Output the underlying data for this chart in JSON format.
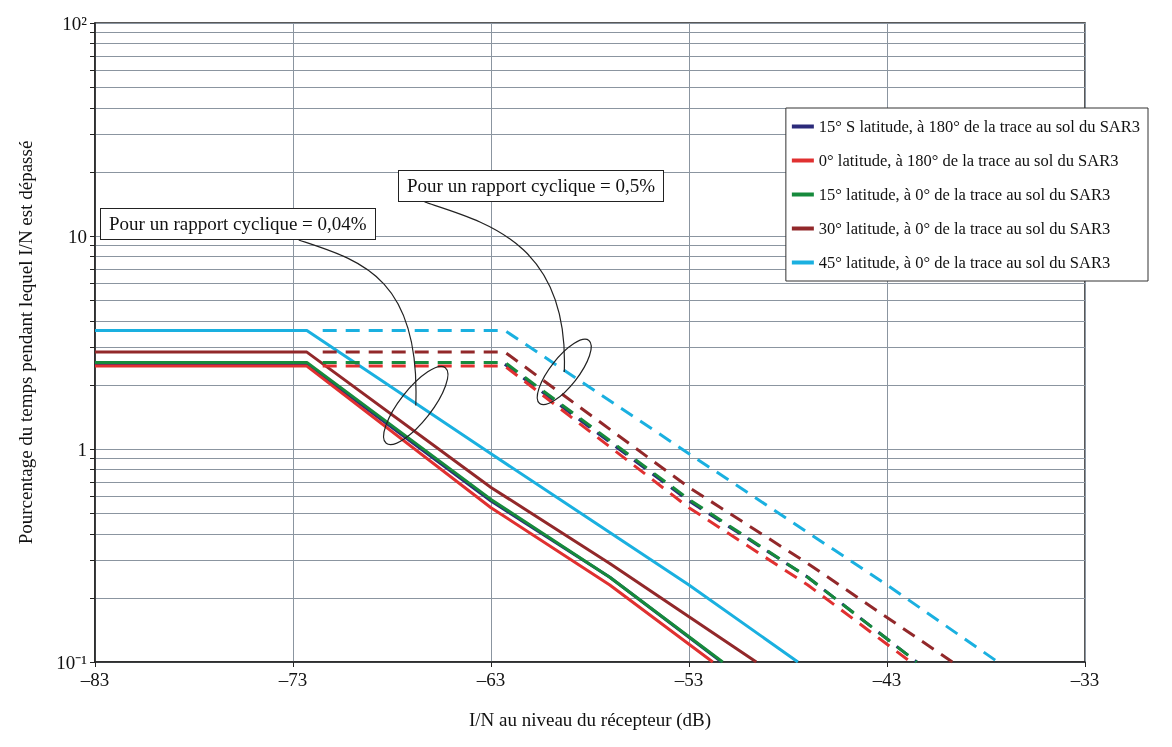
{
  "chart_data": {
    "type": "line",
    "xlabel": "I/N au niveau du récepteur (dB)",
    "ylabel": "Pourcentage du temps pendant lequel I/N est dépassé",
    "xlim": [
      -83,
      -33
    ],
    "xticks": [
      {
        "value": -83,
        "label": "–83"
      },
      {
        "value": -73,
        "label": "–73"
      },
      {
        "value": -63,
        "label": "–63"
      },
      {
        "value": -53,
        "label": "–53"
      },
      {
        "value": -43,
        "label": "–43"
      },
      {
        "value": -33,
        "label": "–33"
      }
    ],
    "ylim": [
      0.1,
      100
    ],
    "yticks": [
      {
        "value": 0.1,
        "label": "10⁻¹"
      },
      {
        "value": 0.2,
        "label": null
      },
      {
        "value": 0.3,
        "label": null
      },
      {
        "value": 0.4,
        "label": null
      },
      {
        "value": 0.5,
        "label": null
      },
      {
        "value": 0.6,
        "label": null
      },
      {
        "value": 0.7,
        "label": null
      },
      {
        "value": 0.8,
        "label": null
      },
      {
        "value": 0.9,
        "label": null
      },
      1,
      {
        "value": 2,
        "label": null
      },
      {
        "value": 3,
        "label": null
      },
      {
        "value": 4,
        "label": null
      },
      {
        "value": 5,
        "label": null
      },
      {
        "value": 6,
        "label": null
      },
      {
        "value": 7,
        "label": null
      },
      {
        "value": 8,
        "label": null
      },
      {
        "value": 9,
        "label": null
      },
      10,
      {
        "value": 20,
        "label": null
      },
      {
        "value": 30,
        "label": null
      },
      {
        "value": 40,
        "label": null
      },
      {
        "value": 50,
        "label": null
      },
      {
        "value": 60,
        "label": null
      },
      {
        "value": 70,
        "label": null
      },
      {
        "value": 80,
        "label": null
      },
      {
        "value": 90,
        "label": null
      },
      {
        "value": 100,
        "label": "10²"
      }
    ],
    "log": "y",
    "grid": true,
    "legend": "top right",
    "marker": "none",
    "series": [
      {
        "name": "15° S latitude, à 180° de la trace au sol du SAR3",
        "color": "#2b2a7a",
        "line_style": "solid",
        "x": [
          -83,
          -72.3,
          -63,
          -57,
          -51.35
        ],
        "values": [
          2.5,
          2.5,
          0.57,
          0.25,
          0.1
        ]
      },
      {
        "name": "0° latitude, à 180° de la trace au sol du SAR3",
        "color": "#e03030",
        "line_style": "solid",
        "x": [
          -83,
          -72.3,
          -63,
          -57,
          -51.8
        ],
        "values": [
          2.45,
          2.45,
          0.53,
          0.23,
          0.1
        ]
      },
      {
        "name": "15° latitude, à 0° de la trace au sol du SAR3",
        "color": "#168a3c",
        "line_style": "solid",
        "x": [
          -83,
          -72.3,
          -63,
          -57,
          -51.3
        ],
        "values": [
          2.55,
          2.55,
          0.58,
          0.25,
          0.1
        ]
      },
      {
        "name": "30° latitude, à 0° de la trace au sol du SAR3",
        "color": "#92282a",
        "line_style": "solid",
        "x": [
          -83,
          -72.3,
          -63,
          -57,
          -49.6
        ],
        "values": [
          2.85,
          2.85,
          0.66,
          0.29,
          0.1
        ]
      },
      {
        "name": "45° latitude, à 0° de la trace au sol du SAR3",
        "color": "#1ab0e0",
        "line_style": "solid",
        "x": [
          -83,
          -72.3,
          -63,
          -53,
          -47.5
        ],
        "values": [
          3.6,
          3.6,
          0.95,
          0.23,
          0.1
        ]
      },
      {
        "color": "#2b2a7a",
        "line_style": "dashed",
        "x": [
          -62.3,
          -53,
          -47,
          -41.5
        ],
        "values": [
          2.5,
          0.57,
          0.25,
          0.1
        ]
      },
      {
        "color": "#e03030",
        "line_style": "dashed",
        "x": [
          -71.5,
          -62.3,
          -53,
          -47,
          -41.8
        ],
        "values": [
          2.45,
          2.45,
          0.53,
          0.23,
          0.1
        ]
      },
      {
        "color": "#168a3c",
        "line_style": "dashed",
        "x": [
          -71.5,
          -62.3,
          -53,
          -47,
          -41.5
        ],
        "values": [
          2.55,
          2.55,
          0.58,
          0.25,
          0.1
        ]
      },
      {
        "color": "#92282a",
        "line_style": "dashed",
        "x": [
          -71.5,
          -62.3,
          -53,
          -47,
          -39.7
        ],
        "values": [
          2.85,
          2.85,
          0.66,
          0.29,
          0.1
        ]
      },
      {
        "color": "#1ab0e0",
        "line_style": "dashed",
        "x": [
          -71.5,
          -62.3,
          -53,
          -43,
          -37.4
        ],
        "values": [
          3.6,
          3.6,
          0.95,
          0.23,
          0.1
        ]
      }
    ],
    "annotations": [
      {
        "text": "Pour un rapport cyclique = 0,04%",
        "x": -66.8,
        "y": 1.6
      },
      {
        "text": "Pour un rapport cyclique = 0,5%",
        "x": -59.3,
        "y": 2.3
      }
    ]
  }
}
